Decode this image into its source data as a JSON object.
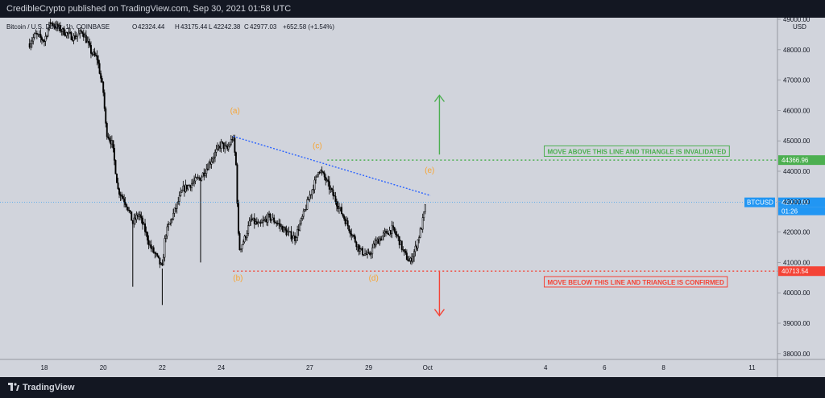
{
  "header": {
    "publisher": "CredibleCrypto published on TradingView.com, Sep 30, 2021 01:58 UTC"
  },
  "legend": {
    "symbol": "Bitcoin / U.S. Dollar, 1h, COINBASE",
    "open_label": "O",
    "open": "42324.44",
    "high_label": "H",
    "high": "43175.44",
    "low_label": "L",
    "low": "42242.38",
    "close_label": "C",
    "close": "42977.03",
    "change": "+652.58 (+1.54%)"
  },
  "footer": {
    "brand": "TradingView"
  },
  "colors": {
    "background": "#d1d4dc",
    "dark": "#131722",
    "candle": "#000000",
    "green": "#4caf50",
    "red": "#f44336",
    "blue": "#2962ff",
    "orange": "#f7a534",
    "price_badge": "#2196f3"
  },
  "chart_data": {
    "type": "candlestick",
    "symbol": "BTCUSD",
    "currency": "USD",
    "y_ticks": [
      "49000.00",
      "48000.00",
      "47000.00",
      "46000.00",
      "45000.00",
      "44000.00",
      "43000.00",
      "42000.00",
      "41000.00",
      "40000.00",
      "39000.00",
      "38000.00"
    ],
    "y_tick_values": [
      49000,
      48000,
      47000,
      46000,
      45000,
      44000,
      43000,
      42000,
      41000,
      40000,
      39000,
      38000
    ],
    "x_ticks": [
      "18",
      "20",
      "22",
      "24",
      "27",
      "29",
      "Oct",
      "4",
      "6",
      "8",
      "11"
    ],
    "x_tick_days": [
      18,
      20,
      22,
      24,
      27,
      29,
      31,
      35,
      37,
      39,
      42
    ],
    "ylim": [
      37500,
      49200
    ],
    "price_series": [
      [
        17.5,
        48200
      ],
      [
        17.7,
        48500
      ],
      [
        18.0,
        48300
      ],
      [
        18.2,
        48900
      ],
      [
        18.5,
        48700
      ],
      [
        18.8,
        48500
      ],
      [
        19.0,
        48400
      ],
      [
        19.3,
        48600
      ],
      [
        19.6,
        47900
      ],
      [
        19.8,
        47700
      ],
      [
        20.0,
        46600
      ],
      [
        20.1,
        45300
      ],
      [
        20.3,
        44900
      ],
      [
        20.5,
        43400
      ],
      [
        20.8,
        42900
      ],
      [
        21.0,
        42300
      ],
      [
        21.2,
        42600
      ],
      [
        21.4,
        42100
      ],
      [
        21.6,
        41500
      ],
      [
        21.8,
        41200
      ],
      [
        22.0,
        40800
      ],
      [
        22.1,
        41900
      ],
      [
        22.3,
        42400
      ],
      [
        22.5,
        42900
      ],
      [
        22.7,
        43400
      ],
      [
        23.0,
        43600
      ],
      [
        23.3,
        43800
      ],
      [
        23.5,
        44100
      ],
      [
        23.8,
        44600
      ],
      [
        24.0,
        44900
      ],
      [
        24.2,
        44700
      ],
      [
        24.4,
        45150
      ],
      [
        24.5,
        44200
      ],
      [
        24.6,
        41400
      ],
      [
        24.8,
        41800
      ],
      [
        25.0,
        42400
      ],
      [
        25.3,
        42200
      ],
      [
        25.6,
        42500
      ],
      [
        25.9,
        42300
      ],
      [
        26.2,
        42000
      ],
      [
        26.5,
        41800
      ],
      [
        26.8,
        42600
      ],
      [
        27.0,
        43200
      ],
      [
        27.2,
        43700
      ],
      [
        27.3,
        44100
      ],
      [
        27.5,
        43800
      ],
      [
        27.8,
        43200
      ],
      [
        28.0,
        42800
      ],
      [
        28.2,
        42400
      ],
      [
        28.5,
        41800
      ],
      [
        28.7,
        41400
      ],
      [
        29.0,
        41200
      ],
      [
        29.2,
        41600
      ],
      [
        29.5,
        41900
      ],
      [
        29.8,
        42100
      ],
      [
        30.0,
        41800
      ],
      [
        30.2,
        41300
      ],
      [
        30.4,
        41000
      ],
      [
        30.6,
        41500
      ],
      [
        30.8,
        42200
      ],
      [
        30.95,
        42977
      ]
    ],
    "spikes": [
      [
        21.0,
        40200
      ],
      [
        22.0,
        39600
      ],
      [
        23.3,
        41000
      ]
    ],
    "levels": [
      {
        "price": 44366.96,
        "label": "44366.96",
        "color": "#4caf50",
        "style": "dotted"
      },
      {
        "price": 40713.54,
        "label": "40713.54",
        "color": "#f44336",
        "style": "dotted"
      },
      {
        "price": 42977.03,
        "label": "42977.03",
        "sublabel": "01:26",
        "tag": "BTCUSD",
        "color": "#2196f3",
        "style": "dotted"
      }
    ],
    "trendline": {
      "from": [
        24.4,
        45150
      ],
      "to": [
        31.1,
        43200
      ],
      "color": "#2962ff"
    },
    "wave_labels": [
      {
        "label": "(a)",
        "day": 24.3,
        "price": 45900
      },
      {
        "label": "(b)",
        "day": 24.4,
        "price": 40400
      },
      {
        "label": "(c)",
        "day": 27.1,
        "price": 44750
      },
      {
        "label": "(d)",
        "day": 29.0,
        "price": 40400
      },
      {
        "label": "(e)",
        "day": 30.9,
        "price": 43950
      }
    ],
    "annotations": [
      {
        "text": "MOVE ABOVE THIS LINE AND TRIANGLE IS INVALIDATED",
        "color": "#4caf50",
        "day": 35.5,
        "price": 44650
      },
      {
        "text": "MOVE BELOW THIS LINE AND TRIANGLE IS CONFIRMED",
        "color": "#f44336",
        "day": 35.5,
        "price": 40350
      }
    ],
    "arrows": [
      {
        "direction": "up",
        "day": 31.4,
        "from": 44550,
        "to": 46500,
        "color": "#4caf50"
      },
      {
        "direction": "down",
        "day": 31.4,
        "from": 40700,
        "to": 39250,
        "color": "#f44336"
      }
    ]
  }
}
